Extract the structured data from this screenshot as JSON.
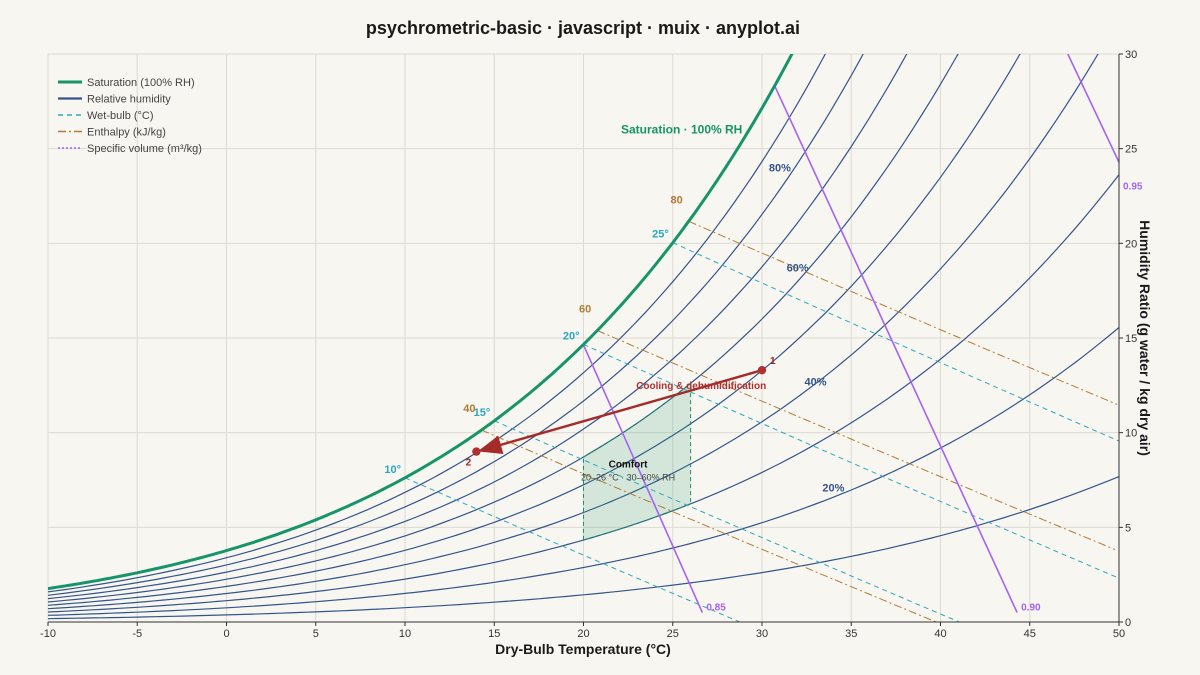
{
  "title": "psychrometric-basic · javascript · muix · anyplot.ai",
  "colors": {
    "background": "#f8f6f0",
    "saturation": "#17946a",
    "rh": "#34558b",
    "wetbulb": "#2aa8c0",
    "enthalpy": "#b27a35",
    "volume": "#a463f2",
    "process": "#a52a2a",
    "comfort_fill": "#17946a",
    "grid": "#dcdad2"
  },
  "chart_data": {
    "type": "line",
    "title": "psychrometric-basic · javascript · muix · anyplot.ai",
    "xlabel": "Dry-Bulb Temperature (°C)",
    "ylabel": "Humidity Ratio (g water / kg dry air)",
    "xlim": [
      -10,
      50
    ],
    "ylim": [
      0,
      30
    ],
    "x_ticks": [
      "-10",
      "-5",
      "0",
      "5",
      "10",
      "15",
      "20",
      "25",
      "30",
      "35",
      "40",
      "45",
      "50"
    ],
    "y_ticks": [
      "0",
      "5",
      "10",
      "15",
      "20",
      "25",
      "30"
    ],
    "y_axis_side": "right",
    "grid": true,
    "legend_position": "top-left",
    "legend": [
      {
        "label": "Saturation (100% RH)",
        "style": "saturation"
      },
      {
        "label": "Relative humidity",
        "style": "rh"
      },
      {
        "label": "Wet-bulb (°C)",
        "style": "wetbulb"
      },
      {
        "label": "Enthalpy (kJ/kg)",
        "style": "enthalpy"
      },
      {
        "label": "Specific volume (m³/kg)",
        "style": "volume"
      }
    ],
    "rh_curves": [
      10,
      20,
      30,
      40,
      50,
      60,
      70,
      80,
      90
    ],
    "rh_labels": [
      {
        "text": "80%",
        "x": 31.0,
        "y": 23.8
      },
      {
        "text": "60%",
        "x": 32.0,
        "y": 18.5
      },
      {
        "text": "40%",
        "x": 33.0,
        "y": 12.5
      },
      {
        "text": "20%",
        "x": 34.0,
        "y": 6.9
      }
    ],
    "saturation_label": {
      "text": "Saturation · 100% RH",
      "x": 25.5,
      "y": 25.8
    },
    "wetbulb_lines": [
      {
        "label": "10°",
        "twb": 10
      },
      {
        "label": "15°",
        "twb": 15
      },
      {
        "label": "20°",
        "twb": 20
      },
      {
        "label": "25°",
        "twb": 25
      }
    ],
    "enthalpy_lines": [
      {
        "label": "40",
        "h": 40
      },
      {
        "label": "60",
        "h": 60
      },
      {
        "label": "80",
        "h": 80
      }
    ],
    "volume_lines": [
      {
        "label": "0.85",
        "v": 0.85
      },
      {
        "label": "0.90",
        "v": 0.9
      },
      {
        "label": "0.95",
        "v": 0.95
      }
    ],
    "comfort_zone": {
      "title": "Comfort",
      "subtitle": "20–26 °C · 30–60% RH",
      "t_range": [
        20,
        26
      ],
      "rh_range": [
        30,
        60
      ]
    },
    "process": {
      "label": "Cooling & dehumidification",
      "points": [
        {
          "label": "1",
          "t": 30,
          "w": 13.3
        },
        {
          "label": "2",
          "t": 14,
          "w": 9.0
        }
      ]
    }
  }
}
